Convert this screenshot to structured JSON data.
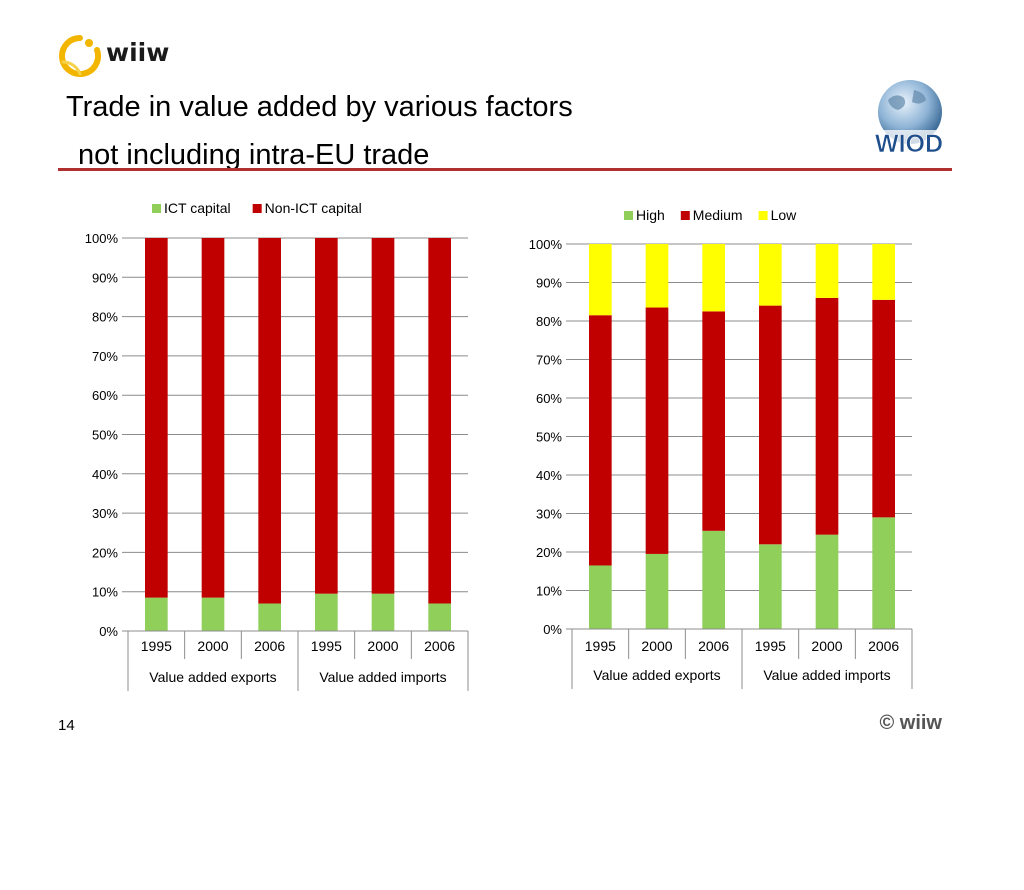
{
  "brand": {
    "name": "wiiw"
  },
  "title": {
    "line1": "Trade in value added by various factors",
    "line2": "not including intra-EU trade"
  },
  "wiod_logo": {
    "text": "WIOD"
  },
  "footer": {
    "page_number": "14",
    "copyright": "© wiiw"
  },
  "colors": {
    "green": "#8fcf5a",
    "red": "#c00000",
    "yellow": "#ffff00",
    "rule": "#b03030"
  },
  "chart_data": [
    {
      "type": "bar",
      "stacked": true,
      "percent_stacked": true,
      "categories": [
        "1995",
        "2000",
        "2006",
        "1995",
        "2000",
        "2006"
      ],
      "groups": [
        {
          "label": "Value added exports",
          "span": 3
        },
        {
          "label": "Value added imports",
          "span": 3
        }
      ],
      "series": [
        {
          "name": "ICT capital",
          "color": "#8fcf5a",
          "values": [
            8.5,
            8.5,
            7,
            9.5,
            9.5,
            7
          ]
        },
        {
          "name": "Non-ICT capital",
          "color": "#c00000",
          "values": [
            91.5,
            91.5,
            93,
            90.5,
            90.5,
            93
          ]
        }
      ],
      "yticks": [
        "0%",
        "10%",
        "20%",
        "30%",
        "40%",
        "50%",
        "60%",
        "70%",
        "80%",
        "90%",
        "100%"
      ],
      "ylim": [
        0,
        100
      ],
      "legend": "top"
    },
    {
      "type": "bar",
      "stacked": true,
      "percent_stacked": true,
      "categories": [
        "1995",
        "2000",
        "2006",
        "1995",
        "2000",
        "2006"
      ],
      "groups": [
        {
          "label": "Value added exports",
          "span": 3
        },
        {
          "label": "Value added imports",
          "span": 3
        }
      ],
      "series": [
        {
          "name": "High",
          "color": "#8fcf5a",
          "values": [
            16.5,
            19.5,
            25.5,
            22,
            24.5,
            29
          ]
        },
        {
          "name": "Medium",
          "color": "#c00000",
          "values": [
            65,
            64,
            57,
            62,
            61.5,
            56.5
          ]
        },
        {
          "name": "Low",
          "color": "#ffff00",
          "values": [
            18.5,
            16.5,
            17.5,
            16,
            14,
            14.5
          ]
        }
      ],
      "yticks": [
        "0%",
        "10%",
        "20%",
        "30%",
        "40%",
        "50%",
        "60%",
        "70%",
        "80%",
        "90%",
        "100%"
      ],
      "ylim": [
        0,
        100
      ],
      "legend": "top"
    }
  ]
}
